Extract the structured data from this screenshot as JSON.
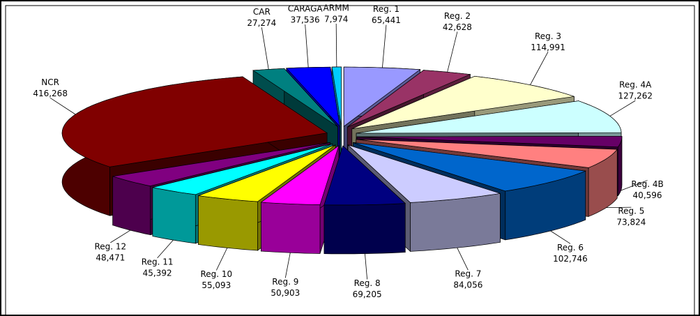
{
  "chart_data": {
    "type": "pie",
    "categories": [
      "Reg. 1",
      "Reg. 2",
      "Reg. 3",
      "Reg. 4A",
      "Reg. 4B",
      "Reg. 5",
      "Reg. 6",
      "Reg. 7",
      "Reg. 8",
      "Reg. 9",
      "Reg. 10",
      "Reg. 11",
      "Reg. 12",
      "NCR",
      "CAR",
      "CARAGA",
      "ARMM"
    ],
    "values": [
      65441,
      42628,
      114991,
      127262,
      40596,
      73824,
      102746,
      84056,
      69205,
      50903,
      55093,
      45392,
      48471,
      416268,
      27274,
      37536,
      7974
    ],
    "value_labels": [
      "65,441",
      "42,628",
      "114,991",
      "127,262",
      "40,596",
      "73,824",
      "102,746",
      "84,056",
      "69,205",
      "50,903",
      "55,093",
      "45,392",
      "48,471",
      "416,268",
      "27,274",
      "37,536",
      "7,974"
    ],
    "colors": [
      "#9999ff",
      "#993366",
      "#ffffcc",
      "#ccffff",
      "#660066",
      "#ff8080",
      "#0066cc",
      "#ccccff",
      "#000080",
      "#ff00ff",
      "#ffff00",
      "#00ffff",
      "#800080",
      "#800000",
      "#008080",
      "#0000ff",
      "#00ccff"
    ]
  }
}
